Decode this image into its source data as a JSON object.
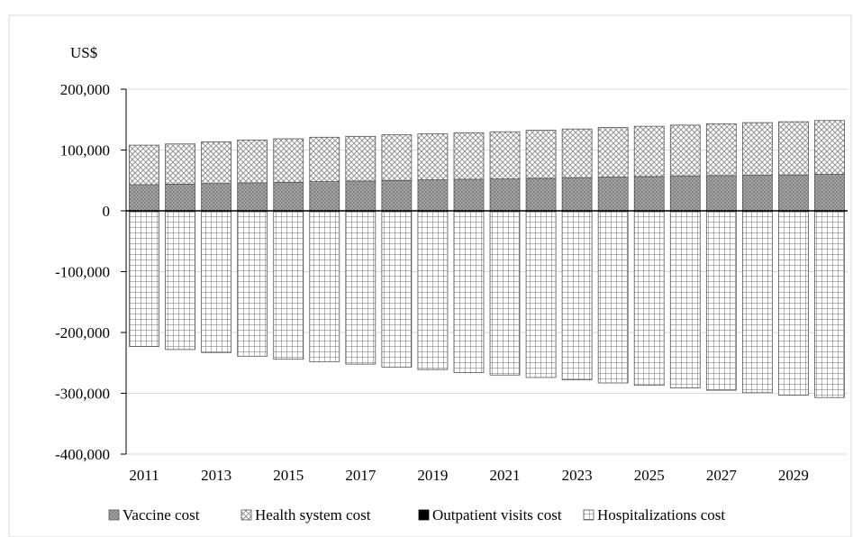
{
  "chart_data": {
    "type": "bar",
    "stacked": true,
    "title": "",
    "xlabel": "",
    "ylabel": "US$",
    "ylim": [
      -400000,
      200000
    ],
    "y_ticks": [
      200000,
      100000,
      0,
      -100000,
      -200000,
      -300000,
      -400000
    ],
    "y_tick_labels": [
      "200,000",
      "100,000",
      "0",
      "-100,000",
      "-200,000",
      "-300,000",
      "-400,000"
    ],
    "grid": true,
    "legend_position": "bottom",
    "categories": [
      "2011",
      "2012",
      "2013",
      "2014",
      "2015",
      "2016",
      "2017",
      "2018",
      "2019",
      "2020",
      "2021",
      "2022",
      "2023",
      "2024",
      "2025",
      "2026",
      "2027",
      "2028",
      "2029",
      "2030"
    ],
    "x_tick_labels": [
      "2011",
      "",
      "2013",
      "",
      "2015",
      "",
      "2017",
      "",
      "2019",
      "",
      "2021",
      "",
      "2023",
      "",
      "2025",
      "",
      "2027",
      "",
      "2029",
      ""
    ],
    "series": [
      {
        "name": "Vaccine cost",
        "pattern": "dots",
        "values": [
          43000,
          44000,
          45000,
          46000,
          47000,
          48000,
          49000,
          50000,
          51000,
          52000,
          52500,
          53500,
          54500,
          55500,
          56500,
          57500,
          58000,
          58500,
          59000,
          60000
        ]
      },
      {
        "name": "Health system cost",
        "pattern": "crosshatch",
        "values": [
          65000,
          66000,
          68500,
          70500,
          71500,
          73000,
          73500,
          75000,
          75500,
          76500,
          77500,
          79000,
          80000,
          81500,
          82500,
          83500,
          85000,
          86500,
          87500,
          88500
        ]
      },
      {
        "name": "Outpatient visits cost",
        "pattern": "solid",
        "values": [
          -1500,
          -1500,
          -1500,
          -1500,
          -1500,
          -1500,
          -1500,
          -1500,
          -1500,
          -1500,
          -1500,
          -1500,
          -1500,
          -1500,
          -1500,
          -1500,
          -1500,
          -1500,
          -1500,
          -1500
        ]
      },
      {
        "name": "Hospitalizations cost",
        "pattern": "grid",
        "values": [
          -221500,
          -226500,
          -231500,
          -237500,
          -242500,
          -246500,
          -250500,
          -255500,
          -259500,
          -264500,
          -268500,
          -272500,
          -276500,
          -281500,
          -285500,
          -289500,
          -293500,
          -297500,
          -301500,
          -305500
        ]
      }
    ],
    "colors": {
      "axis": "#000000",
      "gridline": "#d9d9d9",
      "bar_fill_dots": "#9a9a9a",
      "bar_fill_crosshatch": "#ffffff",
      "bar_fill_solid": "#000000",
      "bar_fill_grid": "#ffffff",
      "bar_stroke": "#555555"
    }
  }
}
